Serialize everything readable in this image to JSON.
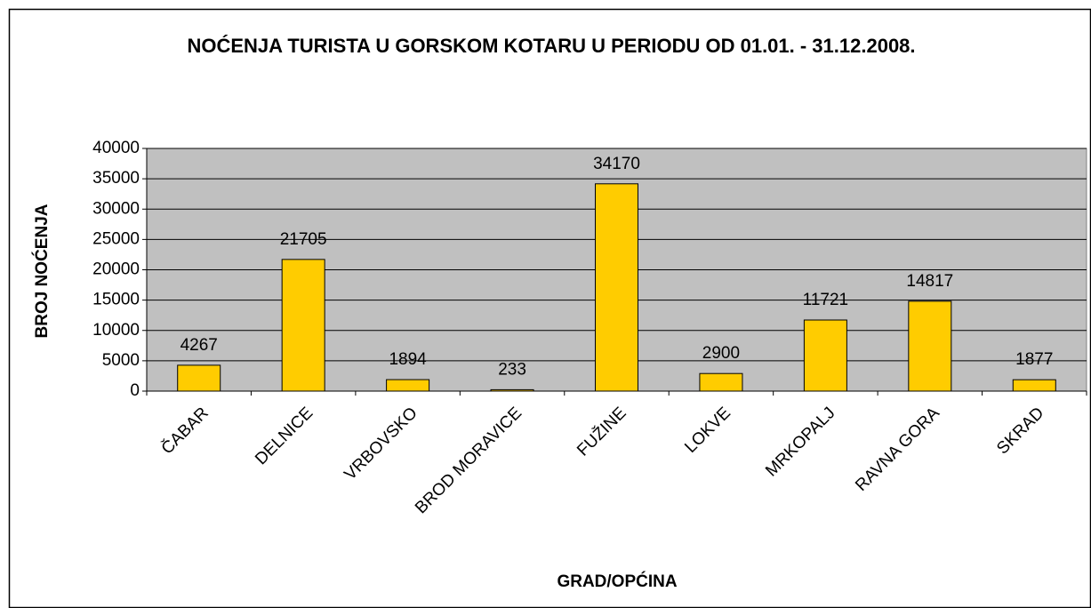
{
  "chart_data": {
    "type": "bar",
    "title": "NOĆENJA TURISTA U GORSKOM KOTARU U PERIODU OD 01.01. - 31.12.2008.",
    "x_label": "GRAD/OPĆINA",
    "y_label": "BROJ NOĆENJA",
    "categories": [
      "ČABAR",
      "DELNICE",
      "VRBOVSKO",
      "BROD MORAVICE",
      "FUŽINE",
      "LOKVE",
      "MRKOPALJ",
      "RAVNA GORA",
      "SKRAD"
    ],
    "values": [
      4267,
      21705,
      1894,
      233,
      34170,
      2900,
      11721,
      14817,
      1877
    ],
    "color": "#ffcc00",
    "ylim": [
      0,
      40000
    ],
    "yticks": [
      0,
      5000,
      10000,
      15000,
      20000,
      25000,
      30000,
      35000,
      40000
    ],
    "grid": true
  }
}
